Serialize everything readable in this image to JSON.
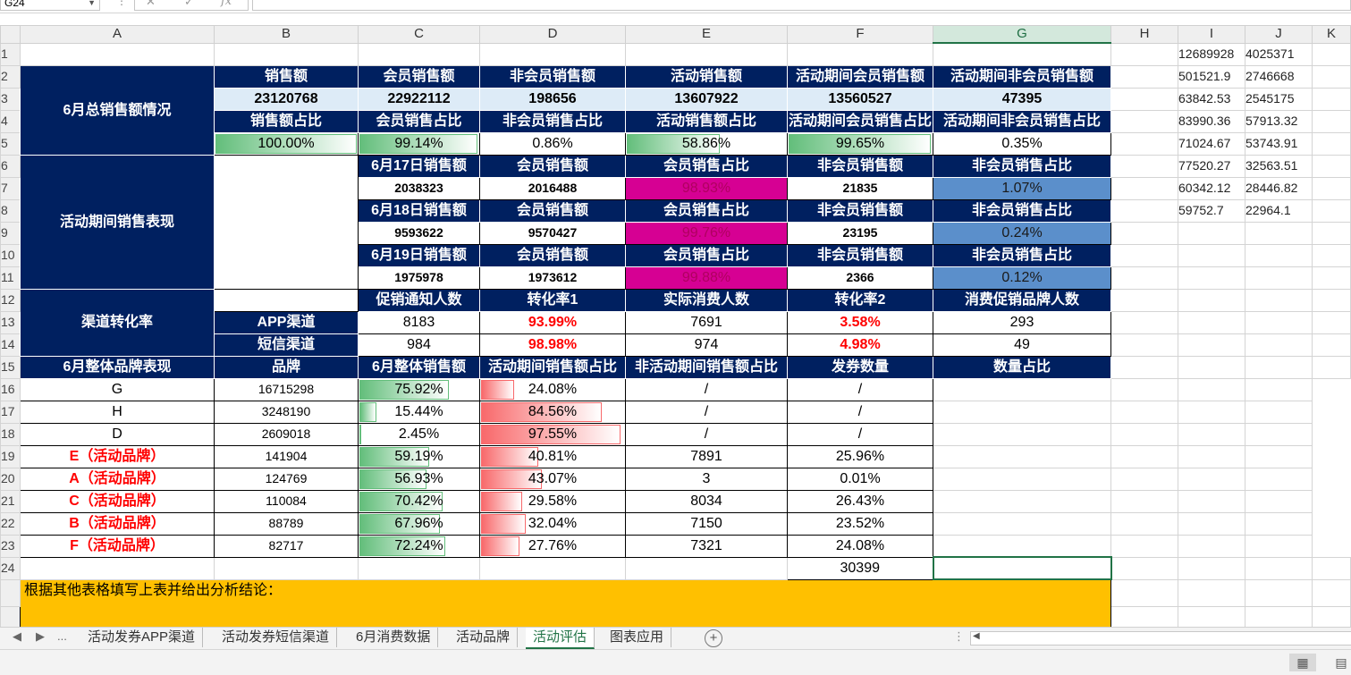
{
  "formula_bar": {
    "name_box": "G24",
    "cancel_icon": "✕",
    "confirm_icon": "✓",
    "fx_label": "fx",
    "formula": ""
  },
  "columns": [
    "A",
    "B",
    "C",
    "D",
    "E",
    "F",
    "G",
    "H",
    "I",
    "J",
    "K"
  ],
  "rows": [
    "1",
    "2",
    "3",
    "4",
    "5",
    "6",
    "7",
    "8",
    "9",
    "10",
    "11",
    "12",
    "13",
    "14",
    "15",
    "16",
    "17",
    "18",
    "19",
    "20",
    "21",
    "22",
    "23",
    "24"
  ],
  "sections": {
    "total": "6月总销售额情况",
    "activity": "活动期间销售表现",
    "channel": "渠道转化率",
    "brand": "6月整体品牌表现"
  },
  "total": {
    "h1": [
      "销售额",
      "会员销售额",
      "非会员销售额",
      "活动销售额",
      "活动期间会员销售额",
      "活动期间非会员销售额"
    ],
    "v1": [
      "23120768",
      "22922112",
      "198656",
      "13607922",
      "13560527",
      "47395"
    ],
    "h2": [
      "销售额占比",
      "会员销售占比",
      "非会员销售占比",
      "活动销售额占比",
      "活动期间会员销售占比",
      "活动期间非会员销售占比"
    ],
    "v2": [
      "100.00%",
      "99.14%",
      "0.86%",
      "58.86%",
      "99.65%",
      "0.35%"
    ],
    "v2_fill": [
      1.0,
      0.9914,
      0,
      0.5886,
      0.9965,
      0
    ]
  },
  "activity": {
    "headers": [
      "会员销售额",
      "会员销售占比",
      "非会员销售额",
      "非会员销售占比"
    ],
    "days": [
      {
        "label": "6月17日销售额",
        "total": "2038323",
        "member": "2016488",
        "member_pct": "98.93%",
        "non_member": "21835",
        "non_member_pct": "1.07%"
      },
      {
        "label": "6月18日销售额",
        "total": "9593622",
        "member": "9570427",
        "member_pct": "99.76%",
        "non_member": "23195",
        "non_member_pct": "0.24%"
      },
      {
        "label": "6月19日销售额",
        "total": "1975978",
        "member": "1973612",
        "member_pct": "99.88%",
        "non_member": "2366",
        "non_member_pct": "0.12%"
      }
    ]
  },
  "channel": {
    "headers": [
      "促销通知人数",
      "转化率1",
      "实际消费人数",
      "转化率2",
      "消费促销品牌人数"
    ],
    "rows": [
      {
        "name": "APP渠道",
        "notified": "8183",
        "rate1": "93.99%",
        "actual": "7691",
        "rate2": "3.58%",
        "brand_buyers": "293"
      },
      {
        "name": "短信渠道",
        "notified": "984",
        "rate1": "98.98%",
        "actual": "974",
        "rate2": "4.98%",
        "brand_buyers": "49"
      }
    ]
  },
  "brand": {
    "headers": [
      "品牌",
      "6月整体销售额",
      "活动期间销售额占比",
      "非活动期间销售额占比",
      "发券数量",
      "数量占比"
    ],
    "rows": [
      {
        "name": "G",
        "sales": "16715298",
        "act": "75.92%",
        "act_f": 0.7592,
        "non": "24.08%",
        "non_f": 0.2408,
        "coupons": "/",
        "share": "/",
        "promo": false
      },
      {
        "name": "H",
        "sales": "3248190",
        "act": "15.44%",
        "act_f": 0.1544,
        "non": "84.56%",
        "non_f": 0.8456,
        "coupons": "/",
        "share": "/",
        "promo": false
      },
      {
        "name": "D",
        "sales": "2609018",
        "act": "2.45%",
        "act_f": 0.0245,
        "non": "97.55%",
        "non_f": 0.9755,
        "coupons": "/",
        "share": "/",
        "promo": false
      },
      {
        "name": "E（活动品牌）",
        "sales": "141904",
        "act": "59.19%",
        "act_f": 0.5919,
        "non": "40.81%",
        "non_f": 0.4081,
        "coupons": "7891",
        "share": "25.96%",
        "promo": true
      },
      {
        "name": "A（活动品牌）",
        "sales": "124769",
        "act": "56.93%",
        "act_f": 0.5693,
        "non": "43.07%",
        "non_f": 0.4307,
        "coupons": "3",
        "share": "0.01%",
        "promo": true
      },
      {
        "name": "C（活动品牌）",
        "sales": "110084",
        "act": "70.42%",
        "act_f": 0.7042,
        "non": "29.58%",
        "non_f": 0.2958,
        "coupons": "8034",
        "share": "26.43%",
        "promo": true
      },
      {
        "name": "B（活动品牌）",
        "sales": "88789",
        "act": "67.96%",
        "act_f": 0.6796,
        "non": "32.04%",
        "non_f": 0.3204,
        "coupons": "7150",
        "share": "23.52%",
        "promo": true
      },
      {
        "name": "F（活动品牌）",
        "sales": "82717",
        "act": "72.24%",
        "act_f": 0.7224,
        "non": "27.76%",
        "non_f": 0.2776,
        "coupons": "7321",
        "share": "24.08%",
        "promo": true
      }
    ],
    "total_coupons": "30399"
  },
  "conclusion": "根据其他表格填写上表并给出分析结论：",
  "side_values": [
    [
      "12689928",
      "4025371"
    ],
    [
      "501521.9",
      "2746668"
    ],
    [
      "63842.53",
      "2545175"
    ],
    [
      "83990.36",
      "57913.32"
    ],
    [
      "71024.67",
      "53743.91"
    ],
    [
      "77520.27",
      "32563.51"
    ],
    [
      "60342.12",
      "28446.82"
    ],
    [
      "59752.7",
      "22964.1"
    ]
  ],
  "sheet_tabs": [
    "活动发券APP渠道",
    "活动发券短信渠道",
    "6月消费数据",
    "活动品牌",
    "活动评估",
    "图表应用"
  ],
  "active_tab": "活动评估",
  "tab_nav": {
    "prev": "◀",
    "next": "▶",
    "more": "...",
    "add": "+"
  }
}
